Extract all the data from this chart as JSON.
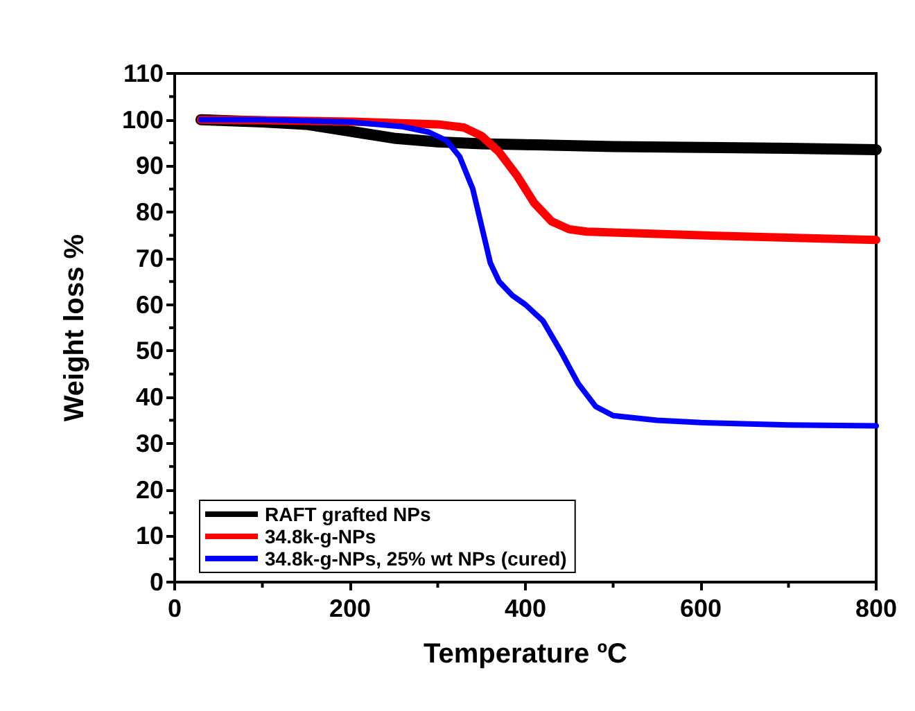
{
  "chart_data": {
    "type": "line",
    "xlabel": "Temperature ºC",
    "ylabel": "Weight loss %",
    "xlim": [
      0,
      800
    ],
    "xticks": [
      0,
      200,
      400,
      600,
      800
    ],
    "ylim": [
      0,
      110
    ],
    "yticks": [
      0,
      10,
      20,
      30,
      40,
      50,
      60,
      70,
      80,
      90,
      100,
      110
    ],
    "grid": false,
    "legend": "bottom left",
    "marker": "none",
    "line_style": "solid",
    "series": [
      {
        "name": "RAFT grafted NPs",
        "color": "#000000",
        "x": [
          30,
          100,
          150,
          200,
          250,
          300,
          350,
          400,
          500,
          600,
          700,
          800
        ],
        "values": [
          100,
          99.5,
          99,
          97.5,
          96,
          95.2,
          94.8,
          94.6,
          94.2,
          94,
          93.8,
          93.5
        ]
      },
      {
        "name": "34.8k-g-NPs",
        "color": "#ff0000",
        "x": [
          30,
          100,
          200,
          300,
          330,
          350,
          370,
          390,
          410,
          430,
          450,
          470,
          500,
          600,
          700,
          800
        ],
        "values": [
          100,
          99.9,
          99.6,
          99,
          98.3,
          96.5,
          93,
          88,
          82,
          78,
          76.3,
          75.8,
          75.6,
          75,
          74.5,
          74
        ]
      },
      {
        "name": "34.8k-g-NPs, 25% wt NPs (cured)",
        "color": "#0000ff",
        "x": [
          30,
          100,
          200,
          260,
          290,
          310,
          325,
          340,
          350,
          360,
          370,
          385,
          400,
          420,
          440,
          460,
          480,
          500,
          550,
          600,
          700,
          800
        ],
        "values": [
          100,
          100,
          99.5,
          98.5,
          97.3,
          95.5,
          92,
          85,
          77,
          69,
          65,
          62,
          60,
          56.5,
          50,
          43,
          38,
          36,
          35,
          34.5,
          34,
          33.8
        ]
      }
    ]
  }
}
